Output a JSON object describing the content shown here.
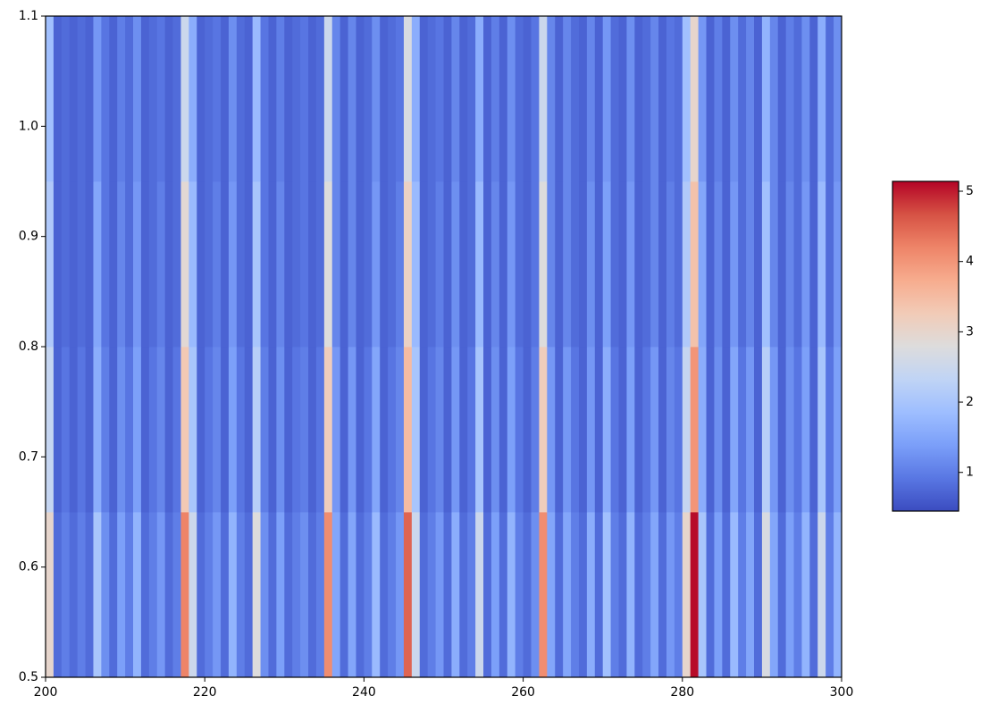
{
  "chart_data": {
    "type": "heatmap",
    "x_bins": [
      200,
      201,
      202,
      203,
      204,
      205,
      206,
      207,
      208,
      209,
      210,
      211,
      212,
      213,
      214,
      215,
      216,
      217,
      218,
      219,
      220,
      221,
      222,
      223,
      224,
      225,
      226,
      227,
      228,
      229,
      230,
      231,
      232,
      233,
      234,
      235,
      236,
      237,
      238,
      239,
      240,
      241,
      242,
      243,
      244,
      245,
      246,
      247,
      248,
      249,
      250,
      251,
      252,
      253,
      254,
      255,
      256,
      257,
      258,
      259,
      260,
      261,
      262,
      263,
      264,
      265,
      266,
      267,
      268,
      269,
      270,
      271,
      272,
      273,
      274,
      275,
      276,
      277,
      278,
      279,
      280,
      281,
      282,
      283,
      284,
      285,
      286,
      287,
      288,
      289,
      290,
      291,
      292,
      293,
      294,
      295,
      296,
      297,
      298,
      299,
      300
    ],
    "y_bins": [
      0.5,
      0.65,
      0.8,
      0.95,
      1.1
    ],
    "z": [
      [
        3.0,
        0.8,
        1.0,
        0.8,
        1.0,
        0.8,
        2.0,
        1.2,
        0.8,
        1.4,
        1.0,
        1.7,
        0.8,
        1.0,
        1.3,
        0.8,
        1.0,
        4.2,
        2.5,
        0.8,
        1.0,
        1.3,
        0.8,
        1.7,
        1.0,
        0.8,
        2.8,
        1.2,
        0.8,
        1.4,
        0.8,
        1.0,
        1.2,
        0.8,
        1.0,
        4.1,
        1.5,
        0.8,
        1.5,
        0.8,
        1.0,
        1.8,
        0.8,
        1.0,
        1.3,
        4.5,
        2.5,
        0.8,
        1.0,
        1.3,
        0.8,
        1.6,
        0.8,
        1.0,
        2.5,
        0.8,
        1.4,
        0.8,
        1.7,
        1.0,
        0.8,
        1.2,
        4.1,
        1.5,
        0.8,
        1.5,
        1.0,
        0.8,
        1.6,
        0.8,
        1.9,
        1.0,
        0.8,
        1.7,
        0.8,
        1.0,
        1.5,
        0.8,
        1.3,
        1.0,
        3.0,
        5.1,
        2.0,
        0.8,
        1.4,
        0.8,
        1.8,
        1.0,
        1.5,
        0.8,
        2.7,
        1.5,
        0.8,
        1.4,
        1.0,
        1.7,
        0.8,
        2.5,
        1.0,
        1.7
      ],
      [
        2.4,
        0.7,
        0.9,
        0.7,
        0.9,
        0.7,
        1.6,
        1.0,
        0.7,
        1.2,
        0.9,
        1.4,
        0.7,
        0.9,
        1.1,
        0.7,
        0.9,
        3.3,
        2.0,
        0.7,
        0.9,
        1.1,
        0.7,
        1.4,
        0.9,
        0.7,
        2.2,
        1.0,
        0.7,
        1.2,
        0.7,
        0.9,
        1.0,
        0.7,
        0.9,
        3.2,
        1.3,
        0.7,
        1.3,
        0.7,
        0.9,
        1.5,
        0.7,
        0.9,
        1.1,
        3.5,
        2.0,
        0.7,
        0.9,
        1.1,
        0.7,
        1.3,
        0.7,
        0.9,
        2.0,
        0.7,
        1.2,
        0.7,
        1.4,
        0.9,
        0.7,
        1.0,
        3.2,
        1.3,
        0.7,
        1.3,
        0.9,
        0.7,
        1.3,
        0.7,
        1.6,
        0.9,
        0.7,
        1.4,
        0.7,
        0.9,
        1.3,
        0.7,
        1.1,
        0.9,
        2.4,
        4.0,
        1.6,
        0.7,
        1.2,
        0.7,
        1.5,
        0.9,
        1.3,
        0.7,
        2.2,
        1.3,
        0.7,
        1.2,
        0.9,
        1.4,
        0.7,
        2.0,
        0.9,
        1.4
      ],
      [
        2.1,
        0.7,
        0.8,
        0.7,
        0.8,
        0.7,
        1.5,
        0.9,
        0.7,
        1.1,
        0.8,
        1.3,
        0.7,
        0.8,
        1.0,
        0.7,
        0.8,
        2.9,
        1.8,
        0.7,
        0.8,
        1.0,
        0.7,
        1.3,
        0.8,
        0.7,
        2.0,
        0.9,
        0.7,
        1.1,
        0.7,
        0.8,
        0.9,
        0.7,
        0.8,
        2.8,
        1.1,
        0.7,
        1.1,
        0.7,
        0.8,
        1.3,
        0.7,
        0.8,
        1.0,
        3.1,
        1.8,
        0.7,
        0.8,
        1.0,
        0.7,
        1.2,
        0.7,
        0.8,
        1.8,
        0.7,
        1.1,
        0.7,
        1.3,
        0.8,
        0.7,
        0.9,
        2.8,
        1.1,
        0.7,
        1.1,
        0.8,
        0.7,
        1.2,
        0.7,
        1.4,
        0.8,
        0.7,
        1.3,
        0.7,
        0.8,
        1.1,
        0.7,
        1.0,
        0.8,
        2.1,
        3.4,
        1.5,
        0.7,
        1.1,
        0.7,
        1.3,
        0.8,
        1.1,
        0.7,
        1.9,
        1.1,
        0.7,
        1.1,
        0.8,
        1.3,
        0.7,
        1.8,
        0.8,
        1.3
      ],
      [
        1.9,
        0.7,
        0.8,
        0.7,
        0.8,
        0.7,
        1.3,
        0.9,
        0.7,
        1.0,
        0.8,
        1.2,
        0.7,
        0.8,
        0.9,
        0.7,
        0.8,
        2.5,
        1.6,
        0.7,
        0.8,
        0.9,
        0.7,
        1.2,
        0.8,
        0.7,
        1.8,
        0.9,
        0.7,
        1.0,
        0.7,
        0.8,
        0.9,
        0.7,
        0.8,
        2.5,
        1.1,
        0.7,
        1.1,
        0.7,
        0.8,
        1.2,
        0.7,
        0.8,
        0.9,
        2.7,
        1.6,
        0.7,
        0.8,
        0.9,
        0.7,
        1.1,
        0.7,
        0.8,
        1.6,
        0.7,
        1.0,
        0.7,
        1.2,
        0.8,
        0.7,
        0.9,
        2.5,
        1.1,
        0.7,
        1.1,
        0.8,
        0.7,
        1.1,
        0.7,
        1.3,
        0.8,
        0.7,
        1.2,
        0.7,
        0.8,
        1.1,
        0.7,
        0.9,
        0.8,
        1.9,
        3.0,
        1.3,
        0.7,
        1.0,
        0.7,
        1.2,
        0.8,
        1.1,
        0.7,
        1.7,
        1.1,
        0.7,
        1.0,
        0.8,
        1.2,
        0.7,
        1.6,
        0.8,
        1.2
      ]
    ],
    "xlim": [
      200,
      300
    ],
    "xticks": [
      200,
      220,
      240,
      260,
      280,
      300
    ],
    "ylim": [
      0.5,
      1.1
    ],
    "yticks": [
      0.5,
      0.6,
      0.7,
      0.8,
      0.9,
      {
        "value": 1,
        "label": "1.0"
      },
      1.1
    ],
    "colormap": [
      "#3b4cc0",
      "#5977e3",
      "#7b9ff9",
      "#9ebeff",
      "#c0d4f5",
      "#dddcdc",
      "#f2cbb7",
      "#f7ac8e",
      "#ee8468",
      "#d65244",
      "#b40426"
    ],
    "colorbar": {
      "lim": [
        0.45,
        5.14
      ],
      "ticks": [
        1,
        2,
        3,
        4,
        5
      ]
    }
  }
}
